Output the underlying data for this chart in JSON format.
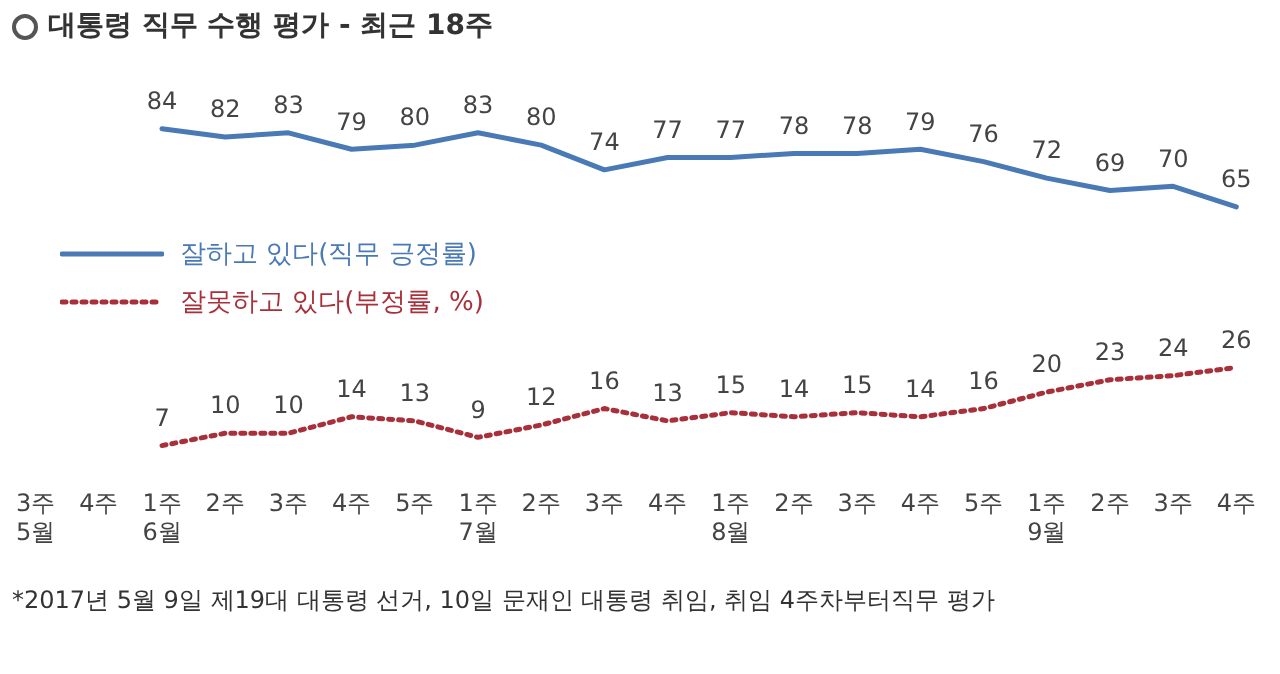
{
  "chart_data": {
    "type": "line",
    "title": "대통령 직무 수행 평가 - 최근 18주",
    "categories": [
      "3주\n5월",
      "4주",
      "1주\n6월",
      "2주",
      "3주",
      "4주",
      "5주",
      "1주\n7월",
      "2주",
      "3주",
      "4주",
      "1주\n8월",
      "2주",
      "3주",
      "4주",
      "5주",
      "1주\n9월",
      "2주",
      "3주",
      "4주"
    ],
    "series": [
      {
        "name": "잘하고 있다(직무 긍정률)",
        "color": "#4a7ab5",
        "line_style": "solid",
        "values": [
          null,
          null,
          84,
          82,
          83,
          79,
          80,
          83,
          80,
          74,
          77,
          77,
          78,
          78,
          79,
          76,
          72,
          69,
          70,
          65
        ]
      },
      {
        "name": "잘못하고 있다(부정률, %)",
        "color": "#a8303a",
        "line_style": "dotted",
        "values": [
          null,
          null,
          7,
          10,
          10,
          14,
          13,
          9,
          12,
          16,
          13,
          15,
          14,
          15,
          14,
          16,
          20,
          23,
          24,
          26
        ]
      }
    ],
    "marker": "none",
    "data_labels": true,
    "legend": "center left",
    "grid": false,
    "annotations": [
      "*2017년 5월 9일 제19대 대통령 선거, 10일 문재인 대통령 취임, 취임 4주차부터직무 평가"
    ]
  }
}
